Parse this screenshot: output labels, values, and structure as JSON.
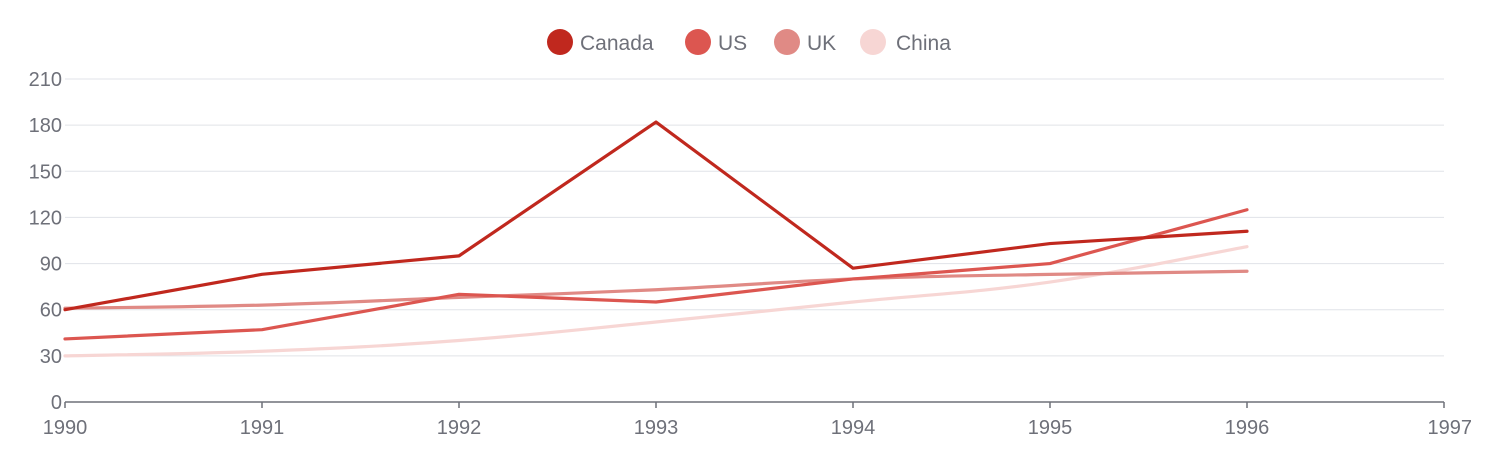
{
  "chart_data": {
    "type": "line",
    "x": [
      1990,
      1991,
      1992,
      1993,
      1994,
      1995,
      1996
    ],
    "xlim": [
      1990,
      1997
    ],
    "x_ticks": [
      "1990",
      "1991",
      "1992",
      "1993",
      "1994",
      "1995",
      "1996",
      "1997"
    ],
    "ylim": [
      0,
      210
    ],
    "y_ticks": [
      "0",
      "30",
      "60",
      "90",
      "120",
      "150",
      "180",
      "210"
    ],
    "grid": true,
    "legend_position": "top-center",
    "series": [
      {
        "name": "Canada",
        "color": "#c0281e",
        "smooth": false,
        "values": [
          60,
          83,
          95,
          182,
          87,
          103,
          111
        ]
      },
      {
        "name": "US",
        "color": "#dc5650",
        "smooth": false,
        "values": [
          41,
          47,
          70,
          65,
          80,
          90,
          125
        ]
      },
      {
        "name": "UK",
        "color": "#e08a85",
        "smooth": true,
        "values": [
          61,
          63,
          68,
          73,
          80,
          83,
          85
        ]
      },
      {
        "name": "China",
        "color": "#f7d6d4",
        "smooth": true,
        "values": [
          30,
          33,
          40,
          52,
          65,
          78,
          101
        ]
      }
    ]
  }
}
